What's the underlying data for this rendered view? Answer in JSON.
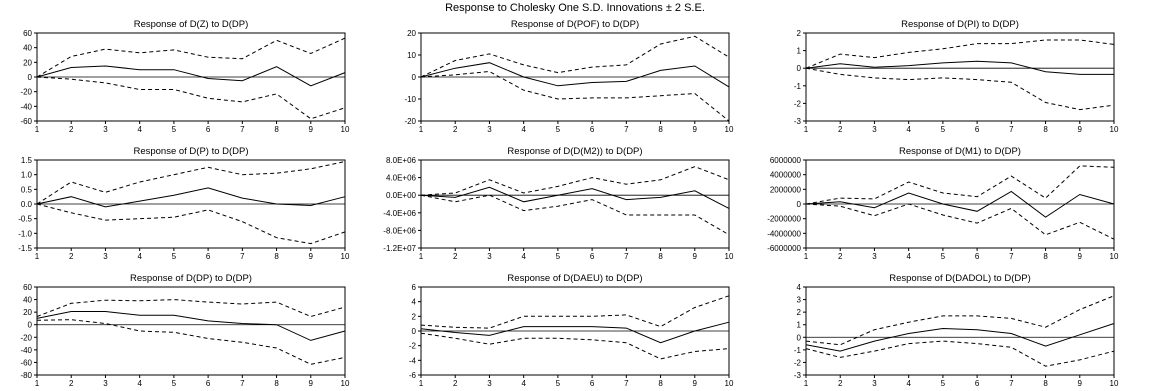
{
  "title": "Response to Cholesky One S.D. Innovations ± 2 S.E.",
  "chart_data": [
    {
      "type": "line",
      "title": "Response of D(Z) to D(DP)",
      "x": [
        1,
        2,
        3,
        4,
        5,
        6,
        7,
        8,
        9,
        10
      ],
      "ylim": [
        -60,
        60
      ],
      "yticks": [
        -60,
        -40,
        -20,
        0,
        20,
        40,
        60
      ],
      "ytick_labels": [
        "-60",
        "-40",
        "-20",
        "0",
        "20",
        "40",
        "60"
      ],
      "series": [
        {
          "values": [
            0,
            13,
            15,
            10,
            10,
            -2,
            -5,
            14,
            -12,
            6
          ]
        },
        {
          "values": [
            0,
            28,
            38,
            33,
            37,
            27,
            25,
            50,
            32,
            53
          ]
        },
        {
          "values": [
            0,
            -3,
            -8,
            -17,
            -17,
            -29,
            -34,
            -23,
            -57,
            -42
          ]
        }
      ]
    },
    {
      "type": "line",
      "title": "Response of D(POF) to D(DP)",
      "x": [
        1,
        2,
        3,
        4,
        5,
        6,
        7,
        8,
        9,
        10
      ],
      "ylim": [
        -20,
        20
      ],
      "yticks": [
        -20,
        -10,
        0,
        10,
        20
      ],
      "ytick_labels": [
        "-20",
        "-10",
        "0",
        "10",
        "20"
      ],
      "series": [
        {
          "values": [
            0,
            4,
            6.5,
            0,
            -4,
            -2.5,
            -2,
            3,
            5,
            -4.5
          ]
        },
        {
          "values": [
            0,
            7.5,
            10.5,
            5.5,
            2,
            4.5,
            5.5,
            15,
            18.5,
            9
          ]
        },
        {
          "values": [
            0,
            1,
            2.5,
            -6,
            -10,
            -9.5,
            -9.5,
            -8.5,
            -7.5,
            -20
          ]
        }
      ]
    },
    {
      "type": "line",
      "title": "Response of D(PI) to D(DP)",
      "x": [
        1,
        2,
        3,
        4,
        5,
        6,
        7,
        8,
        9,
        10
      ],
      "ylim": [
        -3,
        2
      ],
      "yticks": [
        -3,
        -2,
        -1,
        0,
        1,
        2
      ],
      "ytick_labels": [
        "-3",
        "-2",
        "-1",
        "0",
        "1",
        "2"
      ],
      "series": [
        {
          "values": [
            0,
            0.25,
            0.05,
            0.15,
            0.3,
            0.4,
            0.3,
            -0.2,
            -0.35,
            -0.35
          ]
        },
        {
          "values": [
            0,
            0.8,
            0.6,
            0.9,
            1.1,
            1.4,
            1.4,
            1.6,
            1.6,
            1.35
          ]
        },
        {
          "values": [
            0,
            -0.35,
            -0.55,
            -0.65,
            -0.55,
            -0.65,
            -0.8,
            -1.95,
            -2.35,
            -2.1
          ]
        }
      ]
    },
    {
      "type": "line",
      "title": "Response of D(P) to D(DP)",
      "x": [
        1,
        2,
        3,
        4,
        5,
        6,
        7,
        8,
        9,
        10
      ],
      "ylim": [
        -1.5,
        1.5
      ],
      "yticks": [
        -1.5,
        -1.0,
        -0.5,
        0.0,
        0.5,
        1.0,
        1.5
      ],
      "ytick_labels": [
        "-1.5",
        "-1.0",
        "-0.5",
        "0.0",
        "0.5",
        "1.0",
        "1.5"
      ],
      "series": [
        {
          "values": [
            0,
            0.25,
            -0.1,
            0.1,
            0.3,
            0.55,
            0.2,
            0.0,
            -0.05,
            0.25
          ]
        },
        {
          "values": [
            0,
            0.75,
            0.4,
            0.75,
            1.0,
            1.25,
            1.0,
            1.05,
            1.2,
            1.45
          ]
        },
        {
          "values": [
            0,
            -0.3,
            -0.55,
            -0.5,
            -0.45,
            -0.2,
            -0.6,
            -1.15,
            -1.35,
            -0.95
          ]
        }
      ]
    },
    {
      "type": "line",
      "title": "Response of D(D(M2)) to D(DP)",
      "x": [
        1,
        2,
        3,
        4,
        5,
        6,
        7,
        8,
        9,
        10
      ],
      "ylim": [
        -12000000,
        8000000
      ],
      "yticks": [
        -12000000,
        -8000000,
        -4000000,
        0,
        4000000,
        8000000
      ],
      "ytick_labels": [
        "-1.2E+07",
        "-8.0E+06",
        "-4.0E+06",
        "0.0E+00",
        "4.0E+06",
        "8.0E+06"
      ],
      "series": [
        {
          "values": [
            0,
            -500000,
            1800000,
            -1500000,
            0,
            1500000,
            -1000000,
            -500000,
            1000000,
            -3000000
          ]
        },
        {
          "values": [
            0,
            500000,
            3500000,
            500000,
            2000000,
            4000000,
            2500000,
            3500000,
            6500000,
            3500000
          ]
        },
        {
          "values": [
            0,
            -1500000,
            0,
            -3500000,
            -2500000,
            -1000000,
            -4500000,
            -4500000,
            -4500000,
            -9000000
          ]
        }
      ]
    },
    {
      "type": "line",
      "title": "Response of D(M1) to D(DP)",
      "x": [
        1,
        2,
        3,
        4,
        5,
        6,
        7,
        8,
        9,
        10
      ],
      "ylim": [
        -6000000,
        6000000
      ],
      "yticks": [
        -6000000,
        -4000000,
        -2000000,
        0,
        2000000,
        4000000,
        6000000
      ],
      "ytick_labels": [
        "-6000000",
        "-4000000",
        "-2000000",
        "0",
        "2000000",
        "4000000",
        "6000000"
      ],
      "series": [
        {
          "values": [
            0,
            300000,
            -500000,
            1500000,
            0,
            -1000000,
            1700000,
            -1800000,
            1300000,
            0
          ]
        },
        {
          "values": [
            0,
            800000,
            700000,
            3000000,
            1500000,
            1000000,
            3800000,
            800000,
            5200000,
            5000000
          ]
        },
        {
          "values": [
            0,
            -300000,
            -1600000,
            0,
            -1500000,
            -2600000,
            -600000,
            -4200000,
            -2500000,
            -4800000
          ]
        }
      ]
    },
    {
      "type": "line",
      "title": "Response of D(DP) to D(DP)",
      "x": [
        1,
        2,
        3,
        4,
        5,
        6,
        7,
        8,
        9,
        10
      ],
      "ylim": [
        -80,
        60
      ],
      "yticks": [
        -80,
        -60,
        -40,
        -20,
        0,
        20,
        40,
        60
      ],
      "ytick_labels": [
        "-80",
        "-60",
        "-40",
        "-20",
        "0",
        "20",
        "40",
        "60"
      ],
      "series": [
        {
          "values": [
            10,
            21,
            21,
            15,
            15,
            6,
            2,
            0,
            -25,
            -10
          ]
        },
        {
          "values": [
            13,
            34,
            39,
            38,
            40,
            36,
            33,
            36,
            13,
            28
          ]
        },
        {
          "values": [
            7,
            8,
            2,
            -10,
            -12,
            -22,
            -28,
            -37,
            -63,
            -52
          ]
        }
      ]
    },
    {
      "type": "line",
      "title": "Response of D(DAEU) to D(DP)",
      "x": [
        1,
        2,
        3,
        4,
        5,
        6,
        7,
        8,
        9,
        10
      ],
      "ylim": [
        -6,
        6
      ],
      "yticks": [
        -6,
        -4,
        -2,
        0,
        2,
        4,
        6
      ],
      "ytick_labels": [
        "-6",
        "-4",
        "-2",
        "0",
        "2",
        "4",
        "6"
      ],
      "series": [
        {
          "values": [
            0.3,
            -0.2,
            -0.6,
            0.6,
            0.6,
            0.6,
            0.4,
            -1.6,
            0.0,
            1.2
          ]
        },
        {
          "values": [
            0.8,
            0.5,
            0.4,
            2.0,
            2.0,
            2.0,
            2.2,
            0.6,
            3.2,
            4.8
          ]
        },
        {
          "values": [
            -0.3,
            -1.0,
            -1.8,
            -1.0,
            -1.0,
            -1.2,
            -1.6,
            -3.8,
            -2.8,
            -2.4
          ]
        }
      ]
    },
    {
      "type": "line",
      "title": "Response of D(DADOL) to D(DP)",
      "x": [
        1,
        2,
        3,
        4,
        5,
        6,
        7,
        8,
        9,
        10
      ],
      "ylim": [
        -3,
        4
      ],
      "yticks": [
        -3,
        -2,
        -1,
        0,
        1,
        2,
        3,
        4
      ],
      "ytick_labels": [
        "-3",
        "-2",
        "-1",
        "0",
        "1",
        "2",
        "3",
        "4"
      ],
      "series": [
        {
          "values": [
            -0.6,
            -1.1,
            -0.3,
            0.3,
            0.7,
            0.6,
            0.3,
            -0.7,
            0.2,
            1.1
          ]
        },
        {
          "values": [
            -0.3,
            -0.6,
            0.6,
            1.2,
            1.7,
            1.7,
            1.5,
            0.8,
            2.2,
            3.3
          ]
        },
        {
          "values": [
            -0.9,
            -1.6,
            -1.1,
            -0.5,
            -0.3,
            -0.5,
            -0.8,
            -2.3,
            -1.8,
            -1.1
          ]
        }
      ]
    }
  ]
}
